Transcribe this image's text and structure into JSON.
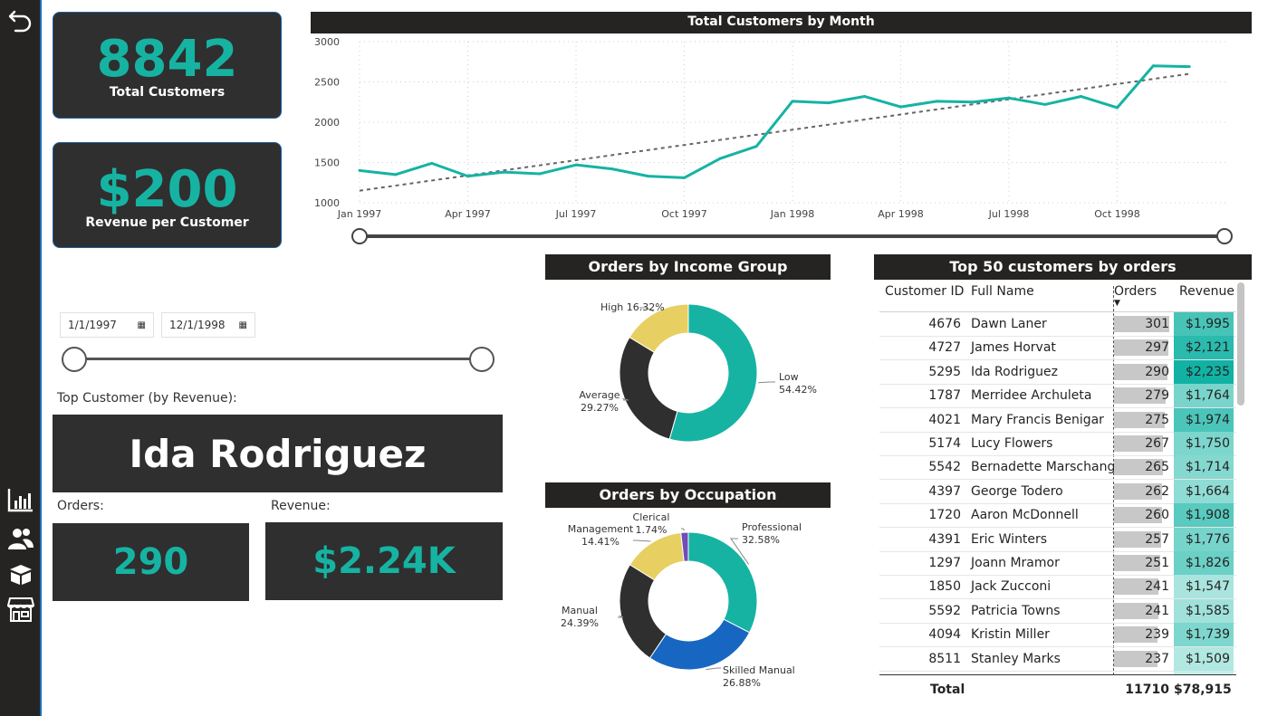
{
  "kpis": {
    "total_customers": {
      "value": "8842",
      "label": "Total Customers"
    },
    "revenue_per_customer": {
      "value": "$200",
      "label": "Revenue per Customer"
    }
  },
  "colors": {
    "accent": "#16b3a3",
    "dark": "#252423",
    "panel": "#2f2f2f",
    "yellow": "#e8cf62",
    "blue": "#1767c2",
    "purple": "#6f4fb6"
  },
  "nav": {
    "icons": [
      "back-arrow-icon",
      "bar-chart-icon",
      "people-icon",
      "box-icon",
      "store-icon"
    ]
  },
  "date_filter": {
    "start": "1/1/1997",
    "end": "12/1/1998"
  },
  "top_customer": {
    "label": "Top Customer (by Revenue):",
    "name": "Ida Rodriguez",
    "orders_label": "Orders:",
    "orders": "290",
    "revenue_label": "Revenue:",
    "revenue": "$2.24K"
  },
  "line_chart_title": "Total Customers by Month",
  "income_title": "Orders by Income Group",
  "occupation_title": "Orders by Occupation",
  "table": {
    "title": "Top 50 customers by orders",
    "headers": {
      "id": "Customer ID",
      "name": "Full Name",
      "orders": "Orders",
      "revenue": "Revenue"
    },
    "rows": [
      {
        "id": "4676",
        "name": "Dawn Laner",
        "orders": "301",
        "revenue": "$1,995"
      },
      {
        "id": "4727",
        "name": "James Horvat",
        "orders": "297",
        "revenue": "$2,121"
      },
      {
        "id": "5295",
        "name": "Ida Rodriguez",
        "orders": "290",
        "revenue": "$2,235"
      },
      {
        "id": "1787",
        "name": "Merridee Archuleta",
        "orders": "279",
        "revenue": "$1,764"
      },
      {
        "id": "4021",
        "name": "Mary Francis Benigar",
        "orders": "275",
        "revenue": "$1,974"
      },
      {
        "id": "5174",
        "name": "Lucy Flowers",
        "orders": "267",
        "revenue": "$1,750"
      },
      {
        "id": "5542",
        "name": "Bernadette Marschang",
        "orders": "265",
        "revenue": "$1,714"
      },
      {
        "id": "4397",
        "name": "George Todero",
        "orders": "262",
        "revenue": "$1,664"
      },
      {
        "id": "1720",
        "name": "Aaron McDonnell",
        "orders": "260",
        "revenue": "$1,908"
      },
      {
        "id": "4391",
        "name": "Eric Winters",
        "orders": "257",
        "revenue": "$1,776"
      },
      {
        "id": "1297",
        "name": "Joann Mramor",
        "orders": "251",
        "revenue": "$1,826"
      },
      {
        "id": "1850",
        "name": "Jack Zucconi",
        "orders": "241",
        "revenue": "$1,547"
      },
      {
        "id": "5592",
        "name": "Patricia Towns",
        "orders": "241",
        "revenue": "$1,585"
      },
      {
        "id": "4094",
        "name": "Kristin Miller",
        "orders": "239",
        "revenue": "$1,739"
      },
      {
        "id": "8511",
        "name": "Stanley Marks",
        "orders": "237",
        "revenue": "$1,509"
      }
    ],
    "total": {
      "label": "Total",
      "orders": "11710",
      "revenue": "$78,915"
    }
  },
  "chart_data": [
    {
      "type": "line",
      "title": "Total Customers by Month",
      "x": [
        "Jan 1997",
        "Feb 1997",
        "Mar 1997",
        "Apr 1997",
        "May 1997",
        "Jun 1997",
        "Jul 1997",
        "Aug 1997",
        "Sep 1997",
        "Oct 1997",
        "Nov 1997",
        "Dec 1997",
        "Jan 1998",
        "Feb 1998",
        "Mar 1998",
        "Apr 1998",
        "May 1998",
        "Jun 1998",
        "Jul 1998",
        "Aug 1998",
        "Sep 1998",
        "Oct 1998",
        "Nov 1998",
        "Dec 1998"
      ],
      "xticks": [
        "Jan 1997",
        "Apr 1997",
        "Jul 1997",
        "Oct 1997",
        "Jan 1998",
        "Apr 1998",
        "Jul 1998",
        "Oct 1998"
      ],
      "series": [
        {
          "values": [
            1400,
            1350,
            1490,
            1330,
            1380,
            1360,
            1470,
            1420,
            1330,
            1310,
            1550,
            1700,
            2260,
            2240,
            2320,
            2190,
            2260,
            2250,
            2300,
            2220,
            2320,
            2180,
            2700,
            2690
          ]
        }
      ],
      "trend": [
        1150,
        2600
      ],
      "ylim": [
        1000,
        3000
      ],
      "yticks": [
        1000,
        1500,
        2000,
        2500,
        3000
      ],
      "grid": true
    },
    {
      "type": "pie",
      "title": "Orders by Income Group",
      "categories": [
        "Low",
        "Average",
        "High"
      ],
      "values": [
        54.42,
        29.27,
        16.32
      ],
      "labels": [
        "54.42%",
        "29.27%",
        "16.32%"
      ],
      "colors": [
        "#16b3a3",
        "#2f2f2f",
        "#e8cf62"
      ]
    },
    {
      "type": "pie",
      "title": "Orders by Occupation",
      "categories": [
        "Professional",
        "Skilled Manual",
        "Manual",
        "Management",
        "Clerical"
      ],
      "values": [
        32.58,
        26.88,
        24.39,
        14.41,
        1.74
      ],
      "labels": [
        "32.58%",
        "26.88%",
        "24.39%",
        "14.41%",
        "1.74%"
      ],
      "colors": [
        "#16b3a3",
        "#1767c2",
        "#2f2f2f",
        "#e8cf62",
        "#6f4fb6"
      ]
    }
  ]
}
